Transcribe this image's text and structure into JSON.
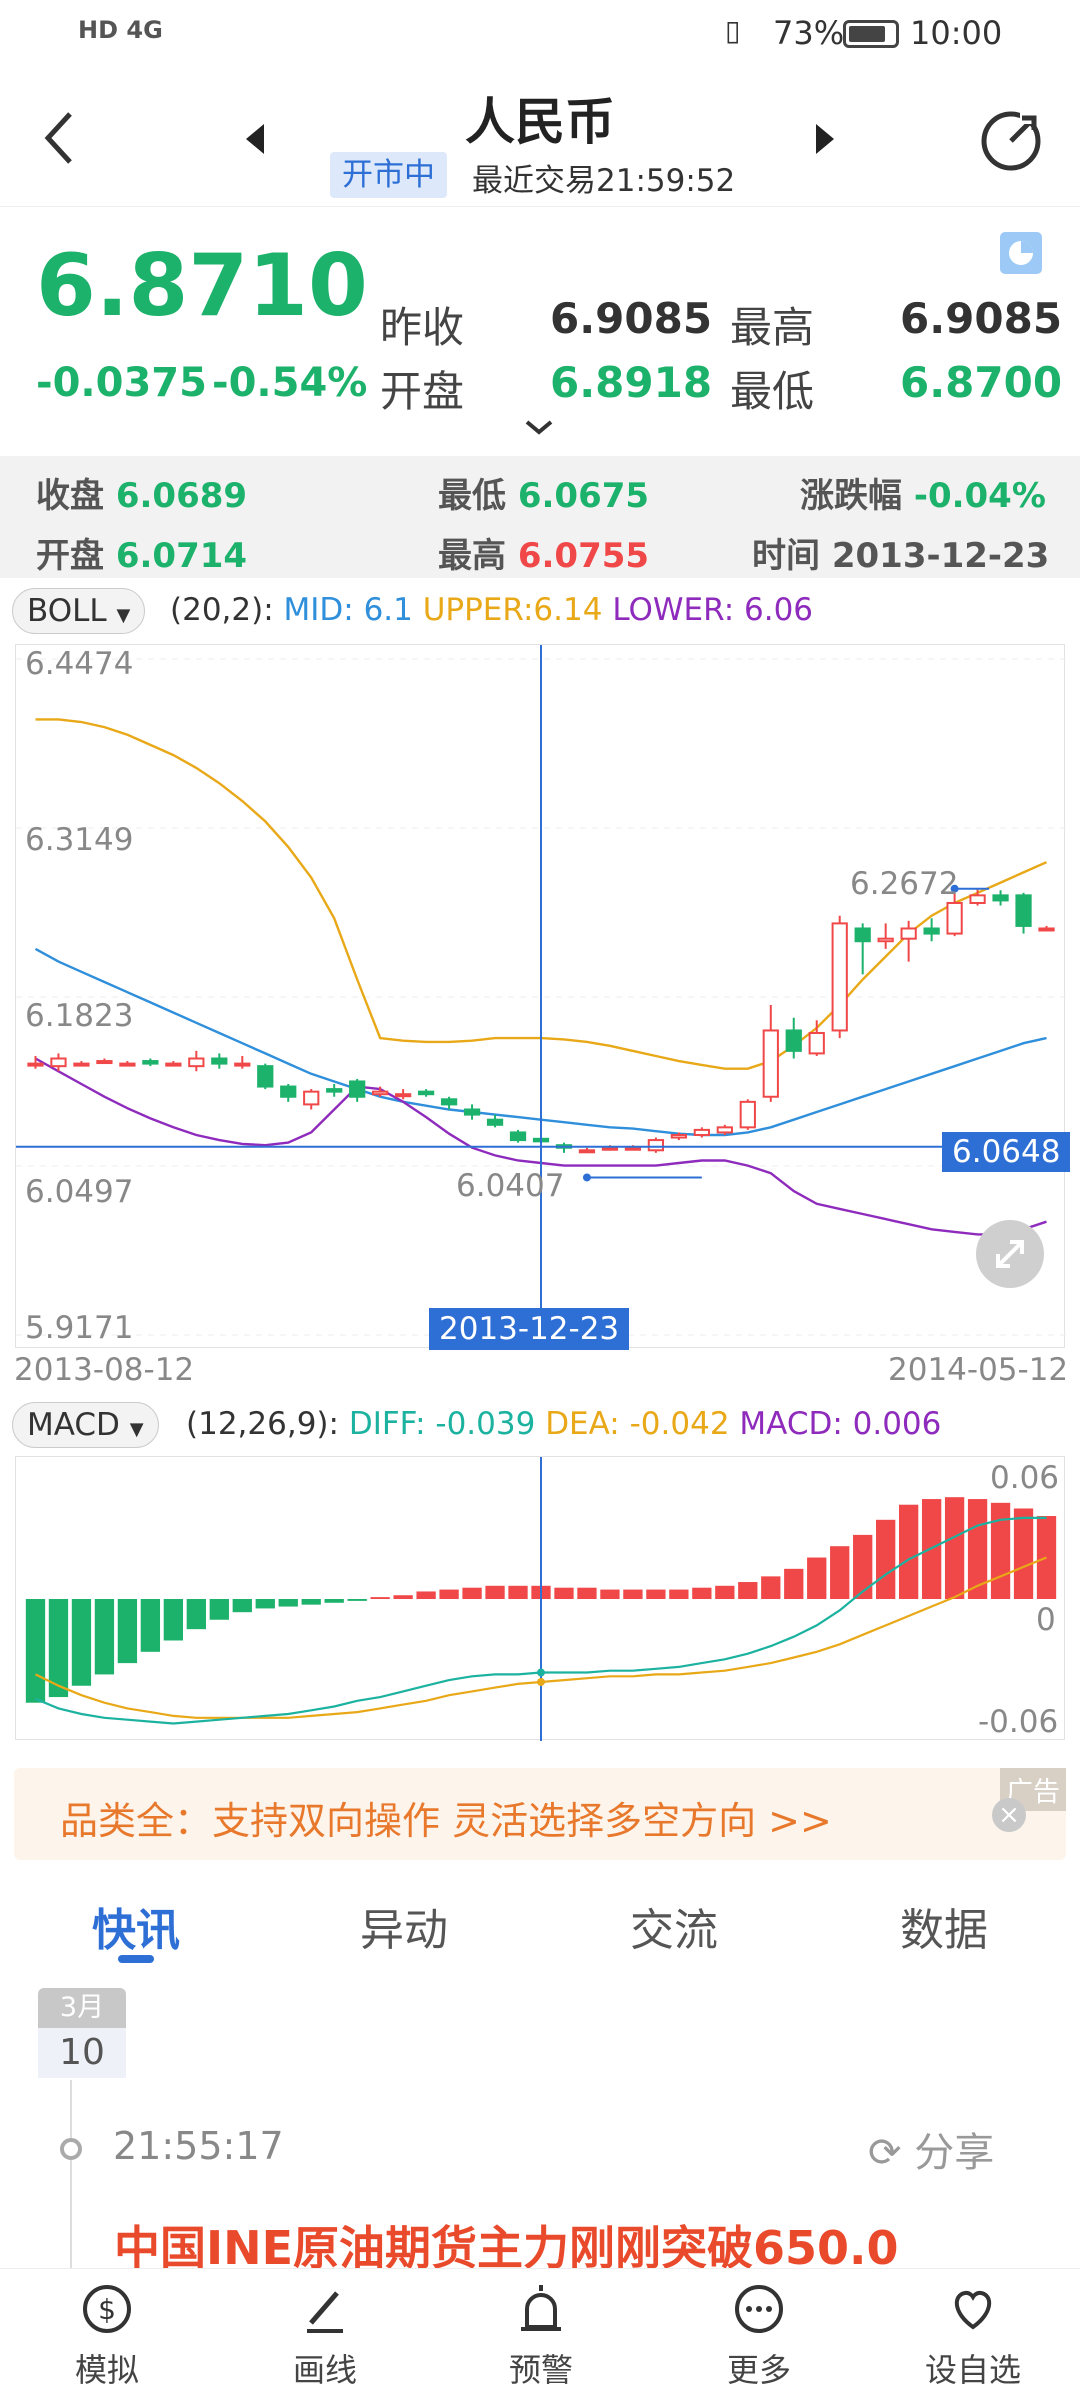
{
  "status_bar": {
    "network": "HD 4G",
    "battery": "73%",
    "time": "10:00"
  },
  "header": {
    "title": "人民币",
    "market_status": "开市中",
    "last_trade": "最近交易21:59:52"
  },
  "quote": {
    "price": "6.8710",
    "change": "-0.0375",
    "change_pct": "-0.54%",
    "prev_close_label": "昨收",
    "prev_close": "6.9085",
    "high_label": "最高",
    "high": "6.9085",
    "open_label": "开盘",
    "open": "6.8918",
    "low_label": "最低",
    "low": "6.8700"
  },
  "crosshair_info": {
    "close_label": "收盘",
    "close": "6.0689",
    "low_label": "最低",
    "low": "6.0675",
    "chg_label": "涨跌幅",
    "chg": "-0.04%",
    "open_label": "开盘",
    "open": "6.0714",
    "high_label": "最高",
    "high": "6.0755",
    "time_label": "时间",
    "time": "2013-12-23"
  },
  "boll": {
    "selector": "BOLL",
    "params": "(20,2):",
    "mid": "MID: 6.1",
    "upper": "UPPER:6.14",
    "lower": "LOWER: 6.06",
    "y_labels": [
      "6.4474",
      "6.3149",
      "6.1823",
      "6.0497",
      "5.9171"
    ],
    "x_start": "2013-08-12",
    "x_end": "2014-05-12",
    "crosshair_date": "2013-12-23",
    "crosshair_price": "6.0648",
    "max_label": "6.2672",
    "min_label": "6.0407"
  },
  "macd": {
    "selector": "MACD",
    "params": "(12,26,9):",
    "diff": "DIFF: -0.039",
    "dea": "DEA: -0.042",
    "macd": "MACD: 0.006",
    "y_labels": [
      "0.06",
      "0",
      "-0.06"
    ]
  },
  "chart_data": {
    "type": "candlestick",
    "ylim": [
      5.9171,
      6.4474
    ],
    "candles": [
      [
        6.13,
        6.13,
        6.136,
        6.126
      ],
      [
        6.128,
        6.134,
        6.138,
        6.124
      ],
      [
        6.13,
        6.13,
        6.132,
        6.128
      ],
      [
        6.132,
        6.132,
        6.134,
        6.13
      ],
      [
        6.13,
        6.13,
        6.132,
        6.128
      ],
      [
        6.132,
        6.13,
        6.134,
        6.128
      ],
      [
        6.13,
        6.13,
        6.132,
        6.128
      ],
      [
        6.128,
        6.134,
        6.14,
        6.124
      ],
      [
        6.134,
        6.13,
        6.138,
        6.126
      ],
      [
        6.13,
        6.13,
        6.136,
        6.126
      ],
      [
        6.128,
        6.112,
        6.13,
        6.11
      ],
      [
        6.112,
        6.104,
        6.114,
        6.1
      ],
      [
        6.098,
        6.108,
        6.11,
        6.094
      ],
      [
        6.11,
        6.108,
        6.114,
        6.104
      ],
      [
        6.116,
        6.104,
        6.118,
        6.1
      ],
      [
        6.106,
        6.108,
        6.112,
        6.104
      ],
      [
        6.106,
        6.106,
        6.11,
        6.102
      ],
      [
        6.108,
        6.106,
        6.11,
        6.104
      ],
      [
        6.102,
        6.098,
        6.104,
        6.094
      ],
      [
        6.094,
        6.09,
        6.098,
        6.086
      ],
      [
        6.086,
        6.082,
        6.09,
        6.08
      ],
      [
        6.076,
        6.07,
        6.078,
        6.068
      ],
      [
        6.071,
        6.069,
        6.076,
        6.068
      ],
      [
        6.066,
        6.064,
        6.068,
        6.06
      ],
      [
        6.062,
        6.062,
        6.064,
        6.06
      ],
      [
        6.064,
        6.064,
        6.066,
        6.062
      ],
      [
        6.064,
        6.064,
        6.066,
        6.062
      ],
      [
        6.062,
        6.07,
        6.072,
        6.06
      ],
      [
        6.072,
        6.074,
        6.076,
        6.07
      ],
      [
        6.074,
        6.078,
        6.08,
        6.072
      ],
      [
        6.076,
        6.08,
        6.082,
        6.074
      ],
      [
        6.08,
        6.1,
        6.102,
        6.078
      ],
      [
        6.104,
        6.156,
        6.176,
        6.1
      ],
      [
        6.156,
        6.14,
        6.166,
        6.134
      ],
      [
        6.138,
        6.154,
        6.164,
        6.136
      ],
      [
        6.156,
        6.24,
        6.246,
        6.15
      ],
      [
        6.236,
        6.226,
        6.24,
        6.2
      ],
      [
        6.226,
        6.228,
        6.24,
        6.22
      ],
      [
        6.228,
        6.236,
        6.242,
        6.21
      ],
      [
        6.236,
        6.232,
        6.244,
        6.226
      ],
      [
        6.232,
        6.256,
        6.266,
        6.23
      ],
      [
        6.256,
        6.262,
        6.267,
        6.254
      ],
      [
        6.262,
        6.258,
        6.266,
        6.254
      ],
      [
        6.262,
        6.238,
        6.264,
        6.232
      ],
      [
        6.236,
        6.236,
        6.238,
        6.234
      ]
    ],
    "mid_line": [
      6.22,
      6.21,
      6.202,
      6.194,
      6.186,
      6.178,
      6.17,
      6.162,
      6.154,
      6.146,
      6.138,
      6.13,
      6.122,
      6.116,
      6.11,
      6.104,
      6.1,
      6.097,
      6.094,
      6.092,
      6.09,
      6.088,
      6.086,
      6.084,
      6.082,
      6.08,
      6.079,
      6.077,
      6.075,
      6.074,
      6.074,
      6.076,
      6.08,
      6.086,
      6.092,
      6.098,
      6.104,
      6.11,
      6.116,
      6.122,
      6.128,
      6.134,
      6.14,
      6.146,
      6.15
    ],
    "upper_line": [
      6.4,
      6.4,
      6.398,
      6.394,
      6.388,
      6.38,
      6.372,
      6.362,
      6.35,
      6.336,
      6.32,
      6.3,
      6.276,
      6.244,
      6.196,
      6.15,
      6.148,
      6.147,
      6.147,
      6.148,
      6.15,
      6.15,
      6.15,
      6.149,
      6.147,
      6.144,
      6.14,
      6.136,
      6.132,
      6.129,
      6.126,
      6.126,
      6.132,
      6.144,
      6.158,
      6.176,
      6.196,
      6.214,
      6.232,
      6.246,
      6.256,
      6.264,
      6.272,
      6.28,
      6.288
    ],
    "lower_line": [
      6.134,
      6.124,
      6.114,
      6.104,
      6.095,
      6.087,
      6.08,
      6.074,
      6.07,
      6.067,
      6.066,
      6.068,
      6.076,
      6.094,
      6.112,
      6.11,
      6.1,
      6.088,
      6.075,
      6.064,
      6.058,
      6.054,
      6.052,
      6.05,
      6.05,
      6.05,
      6.05,
      6.05,
      6.052,
      6.054,
      6.054,
      6.05,
      6.044,
      6.03,
      6.02,
      6.016,
      6.012,
      6.008,
      6.004,
      6.0,
      5.998,
      5.996,
      5.996,
      6.0,
      6.006
    ],
    "macd_hist": [
      -0.055,
      -0.052,
      -0.046,
      -0.04,
      -0.034,
      -0.028,
      -0.022,
      -0.016,
      -0.011,
      -0.007,
      -0.005,
      -0.004,
      -0.003,
      -0.002,
      -0.001,
      0.001,
      0.002,
      0.004,
      0.005,
      0.006,
      0.007,
      0.007,
      0.007,
      0.006,
      0.006,
      0.005,
      0.005,
      0.005,
      0.005,
      0.006,
      0.007,
      0.009,
      0.012,
      0.016,
      0.022,
      0.028,
      0.034,
      0.042,
      0.05,
      0.053,
      0.054,
      0.053,
      0.051,
      0.048,
      0.044
    ],
    "diff_line": [
      -0.053,
      -0.058,
      -0.061,
      -0.063,
      -0.064,
      -0.065,
      -0.066,
      -0.065,
      -0.064,
      -0.063,
      -0.062,
      -0.061,
      -0.059,
      -0.057,
      -0.054,
      -0.052,
      -0.049,
      -0.046,
      -0.043,
      -0.041,
      -0.04,
      -0.04,
      -0.039,
      -0.039,
      -0.039,
      -0.038,
      -0.038,
      -0.037,
      -0.036,
      -0.034,
      -0.032,
      -0.029,
      -0.025,
      -0.02,
      -0.014,
      -0.006,
      0.004,
      0.013,
      0.021,
      0.027,
      0.033,
      0.039,
      0.042,
      0.043,
      0.043
    ],
    "dea_line": [
      -0.04,
      -0.046,
      -0.051,
      -0.055,
      -0.058,
      -0.06,
      -0.062,
      -0.063,
      -0.063,
      -0.063,
      -0.063,
      -0.063,
      -0.062,
      -0.061,
      -0.06,
      -0.058,
      -0.056,
      -0.054,
      -0.051,
      -0.049,
      -0.047,
      -0.045,
      -0.044,
      -0.043,
      -0.042,
      -0.041,
      -0.041,
      -0.04,
      -0.04,
      -0.039,
      -0.038,
      -0.036,
      -0.034,
      -0.031,
      -0.028,
      -0.024,
      -0.019,
      -0.014,
      -0.009,
      -0.004,
      0.001,
      0.007,
      0.012,
      0.017,
      0.022
    ],
    "macd_ylim": [
      -0.07,
      0.07
    ]
  },
  "ad": {
    "text": "品类全：支持双向操作 灵活选择多空方向 >>",
    "tag": "广告"
  },
  "tabs": [
    "快讯",
    "异动",
    "交流",
    "数据"
  ],
  "news": {
    "month": "3月",
    "day": "10",
    "time": "21:55:17",
    "share": "分享",
    "headline": "中国INE原油期货主力刚刚突破650.0"
  },
  "bottom_nav": [
    "模拟",
    "画线",
    "预警",
    "更多",
    "设自选"
  ],
  "colors": {
    "up": "#f04848",
    "down": "#1cb26b",
    "mid": "#2f8fdb",
    "upper": "#e8a817",
    "lower": "#8e2bbd",
    "accent": "#2e6fd6"
  }
}
